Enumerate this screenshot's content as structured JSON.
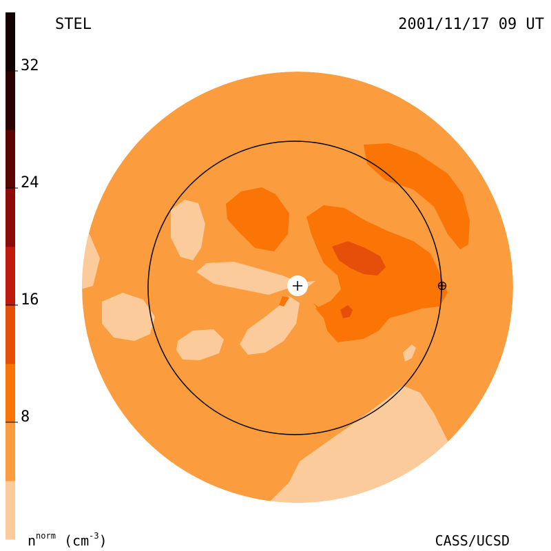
{
  "header": {
    "left_label": "STEL",
    "right_label": "2001/11/17 09 UT"
  },
  "footer": {
    "unit_base": "n",
    "unit_sup": "norm",
    "unit_paren_open": " (cm",
    "unit_exp": "-3",
    "unit_paren_close": ")",
    "credit": "CASS/UCSD"
  },
  "chart_data": {
    "type": "heatmap",
    "title": "",
    "colorbar": {
      "min": 0,
      "max": 36,
      "step": 4,
      "ticks": [
        8,
        16,
        24,
        32
      ],
      "tick_labels": [
        "8",
        "16",
        "24",
        "32"
      ],
      "colors": [
        "#fccb9b",
        "#fb9c3e",
        "#fa7406",
        "#e54f0a",
        "#c01a0c",
        "#8e0a07",
        "#5a0504",
        "#2a0301",
        "#120100"
      ]
    },
    "markers": [
      {
        "name": "sun",
        "symbol": "+"
      },
      {
        "name": "earth",
        "symbol": "⊕"
      }
    ]
  }
}
